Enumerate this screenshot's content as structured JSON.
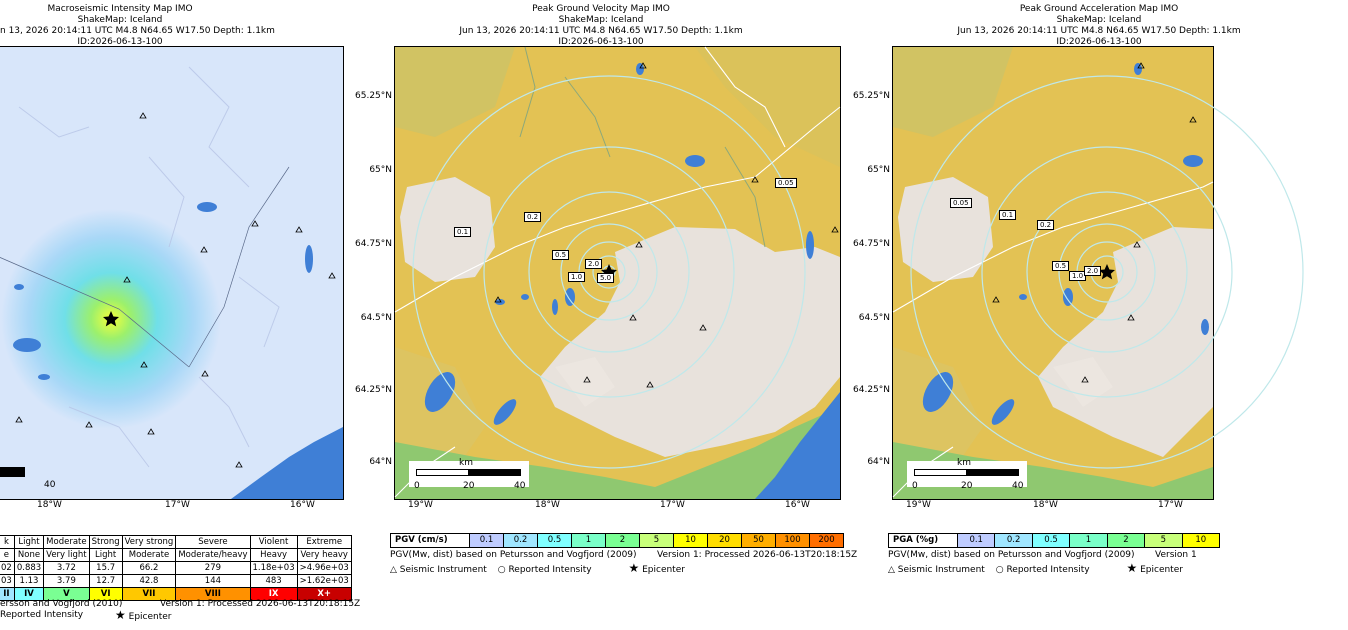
{
  "panels": [
    {
      "title_lines": [
        "Macroseismic Intensity Map IMO",
        "ShakeMap: Iceland",
        "n 13, 2026 20:14:11 UTC M4.8 N64.65 W17.50 Depth: 1.1km",
        "ID:2026-06-13-100"
      ],
      "x_ticks": [
        "18°W",
        "17°W",
        "16°W"
      ],
      "scale_tick": "40",
      "footer_line": "ersson and Vogfjord (2010)",
      "version_line": "Version 1: Processed 2026-06-13T20:18:15Z",
      "legend": {
        "reported": "Reported Intensity",
        "epicenter": "Epicenter"
      }
    },
    {
      "title_lines": [
        "Peak Ground Velocity Map IMO",
        "ShakeMap: Iceland",
        "Jun 13, 2026 20:14:11 UTC M4.8 N64.65 W17.50 Depth: 1.1km",
        "ID:2026-06-13-100"
      ],
      "y_ticks": [
        "65.25°N",
        "65°N",
        "64.75°N",
        "64.5°N",
        "64.25°N",
        "64°N"
      ],
      "x_ticks": [
        "19°W",
        "18°W",
        "17°W",
        "16°W"
      ],
      "scale_unit": "km",
      "scale_ticks": [
        "0",
        "20",
        "40"
      ],
      "contours": [
        "0.05",
        "0.1",
        "0.2",
        "0.5",
        "1.0",
        "2.0",
        "5.0"
      ],
      "bar_label": "PGV (cm/s)",
      "bar_values": [
        "0.1",
        "0.2",
        "0.5",
        "1",
        "2",
        "5",
        "10",
        "20",
        "50",
        "100",
        "200"
      ],
      "footer_line": "PGV(Mw, dist) based on Petursson and Vogfjord (2009)",
      "version_line": "Version 1: Processed 2026-06-13T20:18:15Z",
      "legend": {
        "instrument": "Seismic Instrument",
        "reported": "Reported Intensity",
        "epicenter": "Epicenter"
      }
    },
    {
      "title_lines": [
        "Peak Ground Acceleration Map IMO",
        "ShakeMap: Iceland",
        "Jun 13, 2026 20:14:11 UTC M4.8 N64.65 W17.50 Depth: 1.1km",
        "ID:2026-06-13-100"
      ],
      "y_ticks": [
        "65.25°N",
        "65°N",
        "64.75°N",
        "64.5°N",
        "64.25°N",
        "64°N"
      ],
      "x_ticks": [
        "19°W",
        "18°W",
        "17°W"
      ],
      "scale_unit": "km",
      "scale_ticks": [
        "0",
        "20",
        "40"
      ],
      "contours": [
        "0.05",
        "0.1",
        "0.2",
        "0.5",
        "1.0",
        "2.0"
      ],
      "bar_label": "PGA (%g)",
      "bar_values": [
        "0.1",
        "0.2",
        "0.5",
        "1",
        "2",
        "5",
        "10"
      ],
      "footer_line": "PGV(Mw, dist) based on Petursson and Vogfjord (2009)",
      "version_line": "Version 1",
      "legend": {
        "instrument": "Seismic Instrument",
        "reported": "Reported Intensity",
        "epicenter": "Epicenter"
      }
    }
  ],
  "mmi_table": {
    "rows": [
      [
        "k",
        "Light",
        "Moderate",
        "Strong",
        "Very strong",
        "Severe",
        "Violent",
        "Extreme"
      ],
      [
        "e",
        "None",
        "Very light",
        "Light",
        "Moderate",
        "Moderate/heavy",
        "Heavy",
        "Very heavy"
      ],
      [
        "02",
        "0.883",
        "3.72",
        "15.7",
        "66.2",
        "279",
        "1.18e+03",
        ">4.96e+03"
      ],
      [
        "03",
        "1.13",
        "3.79",
        "12.7",
        "42.8",
        "144",
        "483",
        ">1.62e+03"
      ]
    ],
    "intensity": [
      "II",
      "IV",
      "V",
      "VI",
      "VII",
      "VIII",
      "IX",
      "X+"
    ],
    "intensity_colors": [
      "#a0e6ff",
      "#80ffff",
      "#7aff93",
      "#ffff00",
      "#ffc800",
      "#ff9100",
      "#ff0000",
      "#c80000"
    ]
  },
  "colors": {
    "water": "#3f7fd6",
    "ice": "#e8e2dc",
    "land": "#e3c254",
    "epicenter": "#000000"
  },
  "bar_colors_pgv": [
    "#bfccff",
    "#a0e6ff",
    "#80ffff",
    "#7affc8",
    "#7aff93",
    "#c8ff7a",
    "#ffff00",
    "#ffdd00",
    "#ffae00",
    "#ff9000",
    "#ff6e00"
  ]
}
